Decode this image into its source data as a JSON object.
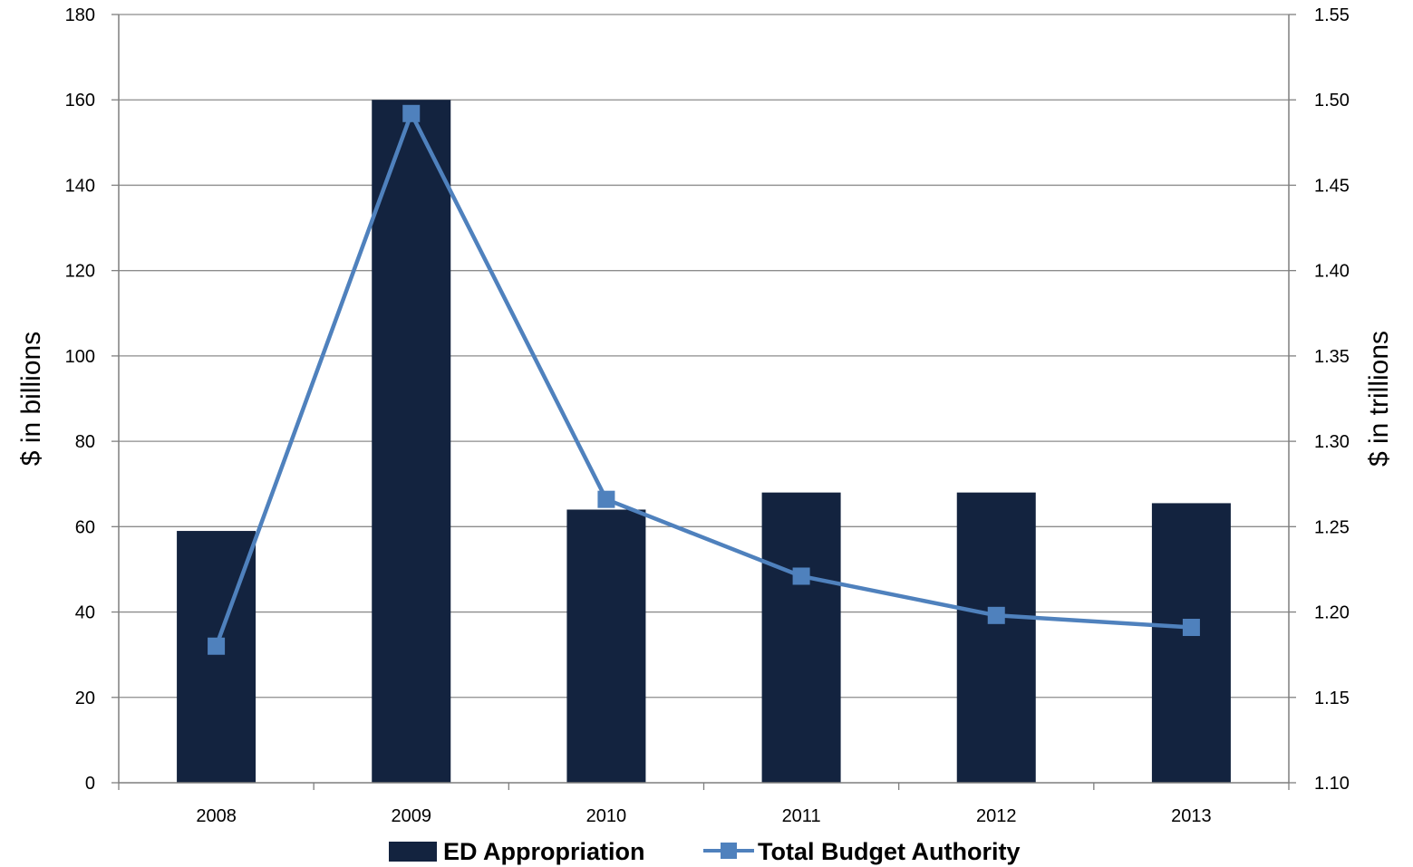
{
  "chart_data": {
    "type": "bar",
    "title": "",
    "categories": [
      "2008",
      "2009",
      "2010",
      "2011",
      "2012",
      "2013"
    ],
    "series": [
      {
        "name": "ED Appropriation",
        "type": "bar",
        "axis": "left",
        "color": "#13233f",
        "values": [
          59,
          160,
          64,
          68,
          68,
          65.5
        ]
      },
      {
        "name": "Total Budget Authority",
        "type": "line",
        "axis": "right",
        "color": "#4f81bd",
        "marker": "square",
        "values": [
          1.18,
          1.492,
          1.266,
          1.221,
          1.198,
          1.191
        ]
      }
    ],
    "y_left": {
      "label": "$ in billions",
      "ylim": [
        0,
        180
      ],
      "ticks": [
        "0",
        "20",
        "40",
        "60",
        "80",
        "100",
        "120",
        "140",
        "160",
        "180"
      ]
    },
    "y_right": {
      "label": "$ in trillions",
      "ylim": [
        1.1,
        1.55
      ],
      "ticks": [
        "1.10",
        "1.15",
        "1.20",
        "1.25",
        "1.30",
        "1.35",
        "1.40",
        "1.45",
        "1.50",
        "1.55"
      ]
    },
    "grid": true,
    "legend": "bottom"
  }
}
